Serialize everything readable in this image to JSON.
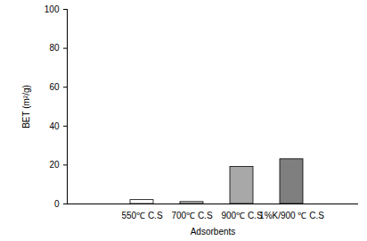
{
  "chart_data": {
    "type": "bar",
    "categories": [
      "550℃ C.S",
      "700℃ C.S",
      "900℃ C.S",
      "1%K/900 ℃ C.S"
    ],
    "values": [
      2,
      1,
      19,
      23
    ],
    "colors": [
      "#ffffff",
      "#d0d0d0",
      "#a8a8a8",
      "#7f7f7f"
    ],
    "x_label": "Adsorbents",
    "y_label": "BET (m²/g)",
    "ylim": [
      0,
      100
    ],
    "yticks": [
      0,
      20,
      40,
      60,
      80,
      100
    ],
    "grid": false
  }
}
